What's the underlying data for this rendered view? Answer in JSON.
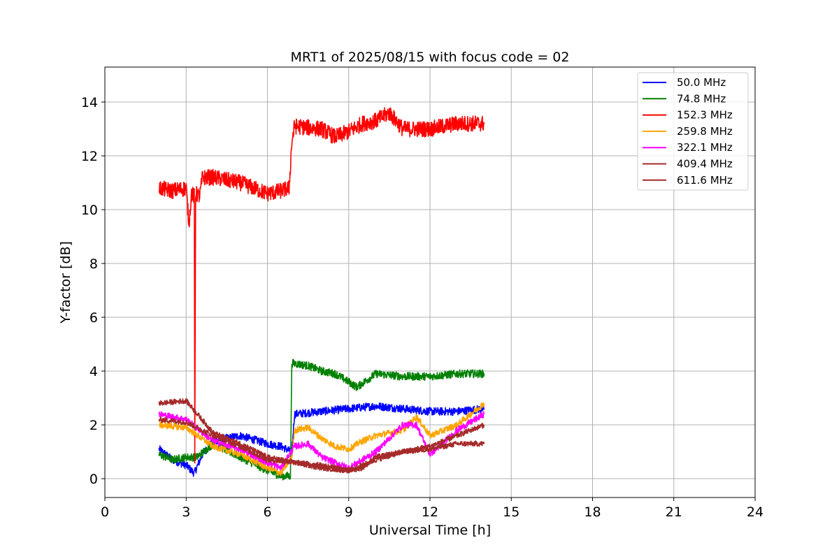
{
  "chart_data": {
    "type": "line",
    "title": "MRT1 of 2025/08/15 with focus code = 02",
    "xlabel": "Universal Time [h]",
    "ylabel": "Y-factor [dB]",
    "xlim": [
      0,
      24
    ],
    "ylim": [
      -0.7,
      15.3
    ],
    "xticks": [
      0,
      3,
      6,
      9,
      12,
      15,
      18,
      21,
      24
    ],
    "yticks": [
      0,
      2,
      4,
      6,
      8,
      10,
      12,
      14
    ],
    "grid": true,
    "legend_position": "top-right",
    "series": [
      {
        "name": " 50.0 MHz",
        "color": "#0000ff",
        "noise": 0.15,
        "x": [
          2.0,
          2.5,
          3.0,
          3.3,
          3.6,
          4.0,
          5.0,
          6.0,
          6.5,
          6.9,
          7.0,
          8.0,
          9.0,
          10.0,
          11.0,
          12.0,
          13.0,
          14.0
        ],
        "y": [
          1.1,
          0.7,
          0.5,
          0.2,
          0.9,
          1.4,
          1.6,
          1.3,
          1.2,
          1.0,
          2.4,
          2.5,
          2.6,
          2.7,
          2.6,
          2.5,
          2.5,
          2.6
        ]
      },
      {
        "name": " 74.8 MHz",
        "color": "#008000",
        "noise": 0.15,
        "x": [
          2.0,
          2.5,
          3.0,
          3.4,
          4.0,
          5.0,
          6.0,
          6.5,
          6.85,
          6.9,
          7.5,
          8.0,
          8.5,
          9.0,
          9.3,
          10.0,
          11.0,
          12.0,
          13.0,
          14.0
        ],
        "y": [
          0.9,
          0.7,
          0.8,
          0.8,
          1.3,
          0.8,
          0.3,
          0.1,
          0.1,
          4.3,
          4.2,
          4.0,
          3.9,
          3.6,
          3.4,
          3.9,
          3.8,
          3.8,
          3.9,
          3.9
        ]
      },
      {
        "name": " 152.3 MHz",
        "color": "#ff0000",
        "noise": 0.3,
        "x": [
          2.0,
          2.5,
          3.0,
          3.1,
          3.2,
          3.3,
          3.32,
          3.35,
          3.5,
          3.6,
          4.0,
          5.0,
          6.0,
          6.5,
          6.8,
          6.9,
          7.0,
          8.0,
          8.5,
          9.0,
          9.5,
          10.0,
          10.5,
          11.0,
          12.0,
          13.0,
          14.0
        ],
        "y": [
          10.8,
          10.7,
          10.8,
          9.5,
          10.6,
          10.5,
          0.5,
          10.6,
          10.5,
          11.2,
          11.2,
          11.0,
          10.6,
          10.7,
          10.8,
          12.5,
          13.1,
          13.0,
          12.7,
          12.9,
          13.2,
          13.3,
          13.6,
          13.0,
          13.0,
          13.2,
          13.2
        ]
      },
      {
        "name": " 259.8 MHz",
        "color": "#ffa500",
        "noise": 0.12,
        "x": [
          2.0,
          3.0,
          4.0,
          5.0,
          6.0,
          6.5,
          6.9,
          7.0,
          7.5,
          8.0,
          8.5,
          9.0,
          9.5,
          10.0,
          11.0,
          11.5,
          12.0,
          13.0,
          14.0
        ],
        "y": [
          2.0,
          1.9,
          1.2,
          0.9,
          0.4,
          0.2,
          0.8,
          1.8,
          1.9,
          1.5,
          1.2,
          1.1,
          1.4,
          1.6,
          1.8,
          2.3,
          1.6,
          2.0,
          2.8
        ]
      },
      {
        "name": " 322.1 MHz",
        "color": "#ff00ff",
        "noise": 0.12,
        "x": [
          2.0,
          3.0,
          4.0,
          5.0,
          6.0,
          6.5,
          7.0,
          7.5,
          8.0,
          9.0,
          9.5,
          10.0,
          10.5,
          11.0,
          11.5,
          12.0,
          13.0,
          14.0
        ],
        "y": [
          2.4,
          2.2,
          1.4,
          1.1,
          0.6,
          0.4,
          1.2,
          1.3,
          0.8,
          0.4,
          0.7,
          1.0,
          1.5,
          2.0,
          2.0,
          0.9,
          1.8,
          2.4
        ]
      },
      {
        "name": " 409.4 MHz",
        "color": "#a52a2a",
        "noise": 0.1,
        "x": [
          2.0,
          3.0,
          3.5,
          4.0,
          5.0,
          6.0,
          7.0,
          8.0,
          9.0,
          9.5,
          10.0,
          11.0,
          12.0,
          13.0,
          14.0
        ],
        "y": [
          2.8,
          2.9,
          2.3,
          1.7,
          1.3,
          0.8,
          0.6,
          0.4,
          0.3,
          0.4,
          0.8,
          1.0,
          1.1,
          1.3,
          1.3
        ]
      },
      {
        "name": " 611.6 MHz",
        "color": "#a52a2a",
        "noise": 0.1,
        "x": [
          2.0,
          3.0,
          4.0,
          5.0,
          6.0,
          7.0,
          8.0,
          9.0,
          10.0,
          11.0,
          12.0,
          13.0,
          14.0
        ],
        "y": [
          2.2,
          2.1,
          1.6,
          1.2,
          0.7,
          0.6,
          0.5,
          0.3,
          0.7,
          1.0,
          1.2,
          1.6,
          2.0
        ]
      }
    ]
  }
}
